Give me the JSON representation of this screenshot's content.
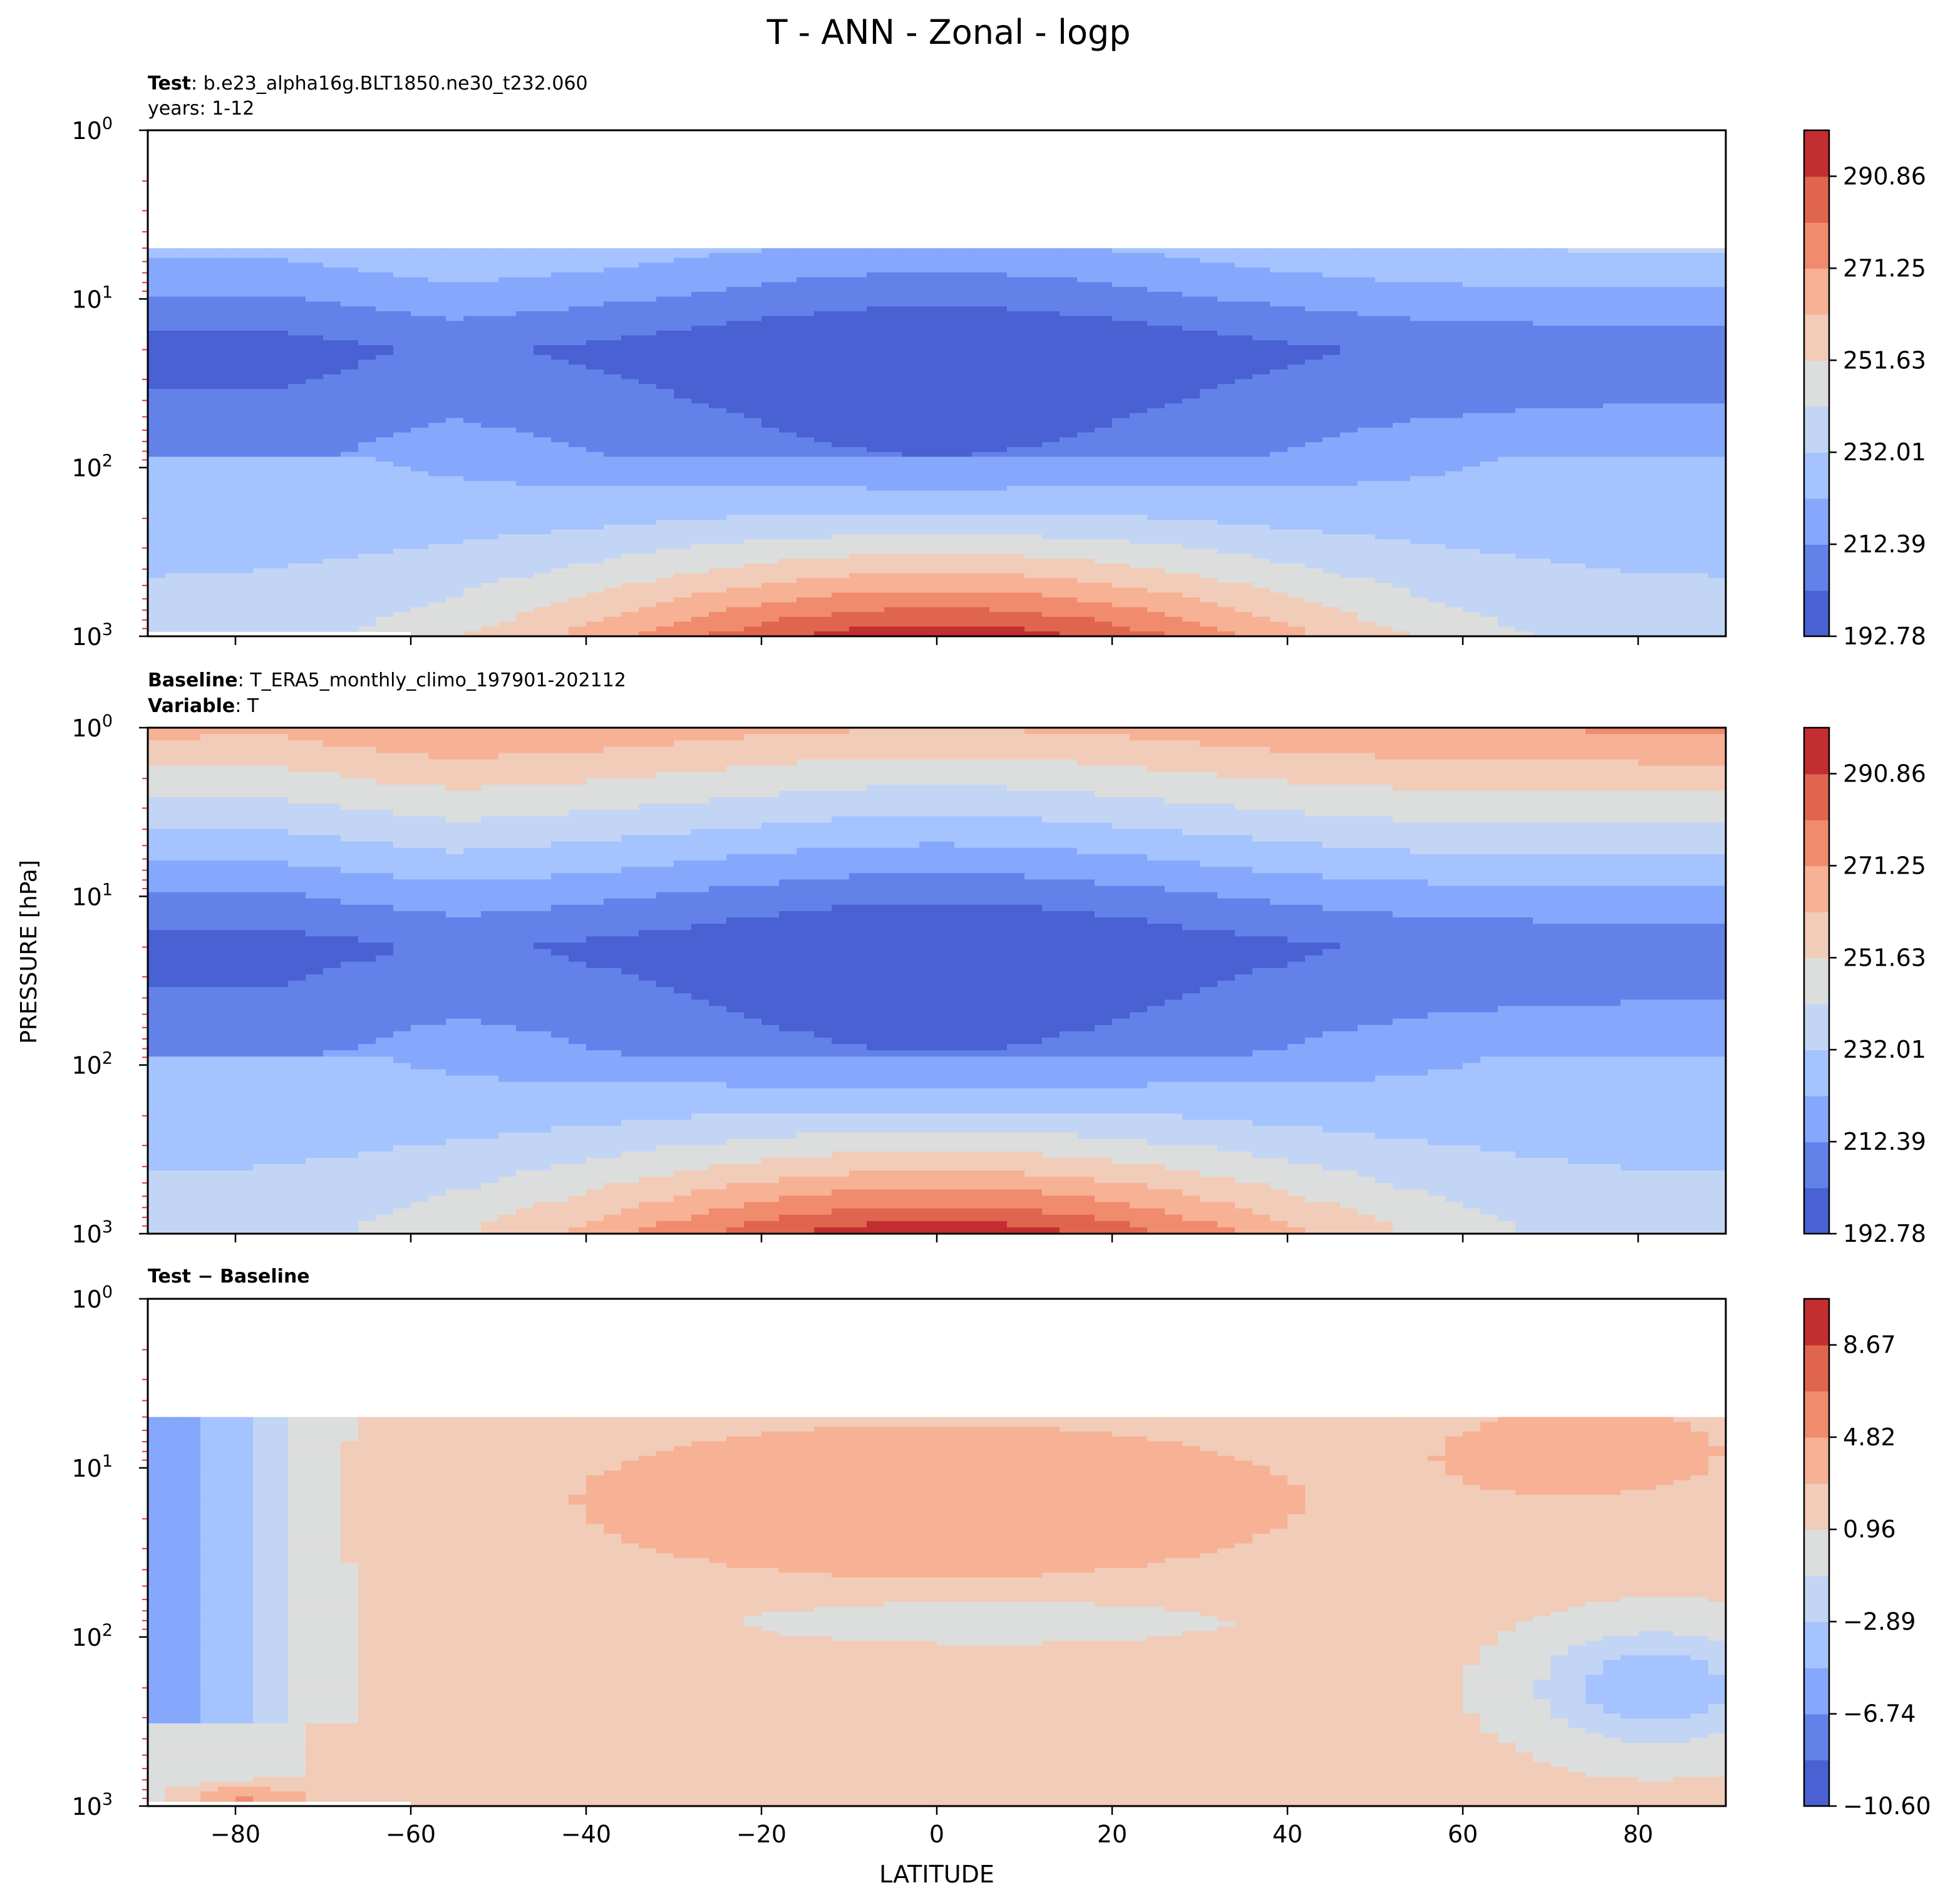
{
  "figure": {
    "title": "T - ANN - Zonal - logp",
    "ylabel": "PRESSURE [hPa]",
    "xlabel": "LATITUDE"
  },
  "colors": {
    "temp_levels": [
      "#4961d2",
      "#6282ea",
      "#85a8fc",
      "#a5c3fe",
      "#c3d5f4",
      "#dcdddd",
      "#f1ccb8",
      "#f7b194",
      "#f08b6e",
      "#e0654f",
      "#c32e31"
    ],
    "diff_levels": [
      "#4961d2",
      "#6282ea",
      "#85a8fc",
      "#a5c3fe",
      "#c3d5f4",
      "#dcdddd",
      "#f1ccb8",
      "#f7b194",
      "#f08b6e",
      "#e0654f",
      "#c32e31"
    ]
  },
  "chart_data": [
    {
      "type": "heatmap",
      "panel": "test",
      "label_bold": "Test",
      "label_text": ": b.e23_alpha16g.BLT1850.ne30_t232.060",
      "label_line2": "years: 1-12",
      "xlim": [
        -90,
        90
      ],
      "ylim": [
        1000,
        1
      ],
      "yscale": "log",
      "x_ticks": [
        -80,
        -60,
        -40,
        -20,
        0,
        20,
        40,
        60,
        80
      ],
      "x_tick_labels": [],
      "y_ticks": [
        1,
        10,
        100,
        1000
      ],
      "y_tick_labels": [
        "10^0",
        "10^1",
        "10^2",
        "10^3"
      ],
      "colorbar_ticks": [
        "192.78",
        "212.39",
        "232.01",
        "251.63",
        "271.25",
        "290.86"
      ],
      "colorbar_range": [
        192.78,
        300.67
      ],
      "data_top_hpa": 5
    },
    {
      "type": "heatmap",
      "panel": "baseline",
      "label_bold": "Baseline",
      "label_text": ": T_ERA5_monthly_climo_197901-202112",
      "label_bold2": "Variable",
      "label_text2": ": T",
      "xlim": [
        -90,
        90
      ],
      "ylim": [
        1000,
        1
      ],
      "yscale": "log",
      "x_ticks": [
        -80,
        -60,
        -40,
        -20,
        0,
        20,
        40,
        60,
        80
      ],
      "x_tick_labels": [],
      "y_ticks": [
        1,
        10,
        100,
        1000
      ],
      "y_tick_labels": [
        "10^0",
        "10^1",
        "10^2",
        "10^3"
      ],
      "colorbar_ticks": [
        "192.78",
        "212.39",
        "232.01",
        "251.63",
        "271.25",
        "290.86"
      ],
      "colorbar_range": [
        192.78,
        300.67
      ],
      "data_top_hpa": 1
    },
    {
      "type": "heatmap",
      "panel": "difference",
      "label_bold": "Test",
      "label_text": " − ",
      "label_bold_b": "Baseline",
      "xlim": [
        -90,
        90
      ],
      "ylim": [
        1000,
        1
      ],
      "yscale": "log",
      "x_ticks": [
        -80,
        -60,
        -40,
        -20,
        0,
        20,
        40,
        60,
        80
      ],
      "x_tick_labels": [
        "−80",
        "−60",
        "−40",
        "−20",
        "0",
        "20",
        "40",
        "60",
        "80"
      ],
      "y_ticks": [
        1,
        10,
        100,
        1000
      ],
      "y_tick_labels": [
        "10^0",
        "10^1",
        "10^2",
        "10^3"
      ],
      "colorbar_ticks": [
        "−10.60",
        "−6.74",
        "−2.89",
        "0.96",
        "4.82",
        "8.67"
      ],
      "colorbar_range": [
        -10.6,
        10.6
      ],
      "data_top_hpa": 5
    }
  ]
}
